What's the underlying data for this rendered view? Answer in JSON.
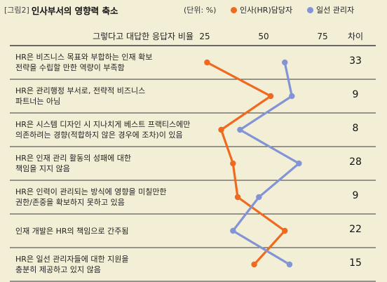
{
  "figure": {
    "tag": "[그림2]",
    "title": "인사부서의 영향력 축소",
    "unit": "(단위: %)",
    "legend_hr": "인사(HR)담당자",
    "legend_mgr": "일선 관리자",
    "axis_label": "그렇다고 대답한 응답자 비율",
    "diff_header": "차이"
  },
  "colors": {
    "hr": "#ef6a1f",
    "mgr": "#8394d6",
    "background": "#f3eed6",
    "divider": "#3a3a3a"
  },
  "chart_data": {
    "type": "line",
    "orientation": "horizontal-values",
    "xlabel": "그렇다고 대답한 응답자 비율",
    "xticks": [
      25,
      50,
      75
    ],
    "xlim": [
      25,
      75
    ],
    "categories": [
      "HR은 비즈니스 목표와 부합하는 인재 확보 전략을 수립할 만한 역량이 부족함",
      "HR은 관리행정 부서로, 전략적 비즈니스 파트너는 아님",
      "HR은 시스템 디자인 시 지나치게 베스트 프랙티스에만 의존하려는 경향(적합하지 않은 경우에 조차)이 있음",
      "HR은 인재 관리 활동의 성패에 대한 책임을 지지 않음",
      "HR은 인력이 관리되는 방식에 영향을 미칠만한 권한/존중을 확보하지 못하고 있음",
      "인재 개발은 HR의 책임으로 간주됨",
      "HR은 일선 관리자들에 대한 지원을 충분히 제공하고 있지 않음"
    ],
    "series": [
      {
        "name": "인사(HR)담당자",
        "values": [
          26,
          53,
          32,
          37,
          39,
          59,
          46
        ]
      },
      {
        "name": "일선 관리자",
        "values": [
          59,
          62,
          40,
          65,
          48,
          37,
          61
        ]
      }
    ],
    "differences": [
      "33",
      "9",
      "8",
      "28",
      "9",
      "22",
      "15"
    ]
  },
  "rows": [
    {
      "line1": "HR은 비즈니스 목표와 부합하는 인재 확보",
      "line2": "전략을 수립할 만한 역량이 부족함"
    },
    {
      "line1": "HR은 관리행정 부서로, 전략적 비즈니스",
      "line2": "파트너는 아님"
    },
    {
      "line1": "HR은 시스템 디자인 시 지나치게 베스트 프랙티스에만",
      "line2": "의존하려는 경향(적합하지 않은 경우에 조차)이 있음"
    },
    {
      "line1": "HR은 인재 관리 활동의 성패에 대한",
      "line2": "책임을 지지 않음"
    },
    {
      "line1": "HR은 인력이 관리되는 방식에 영향을 미칠만한",
      "line2": "권한/존중을 확보하지 못하고 있음"
    },
    {
      "line1": "인재 개발은 HR의 책임으로 간주됨",
      "line2": ""
    },
    {
      "line1": "HR은 일선 관리자들에 대한 지원을",
      "line2": "충분히 제공하고 있지 않음"
    }
  ]
}
